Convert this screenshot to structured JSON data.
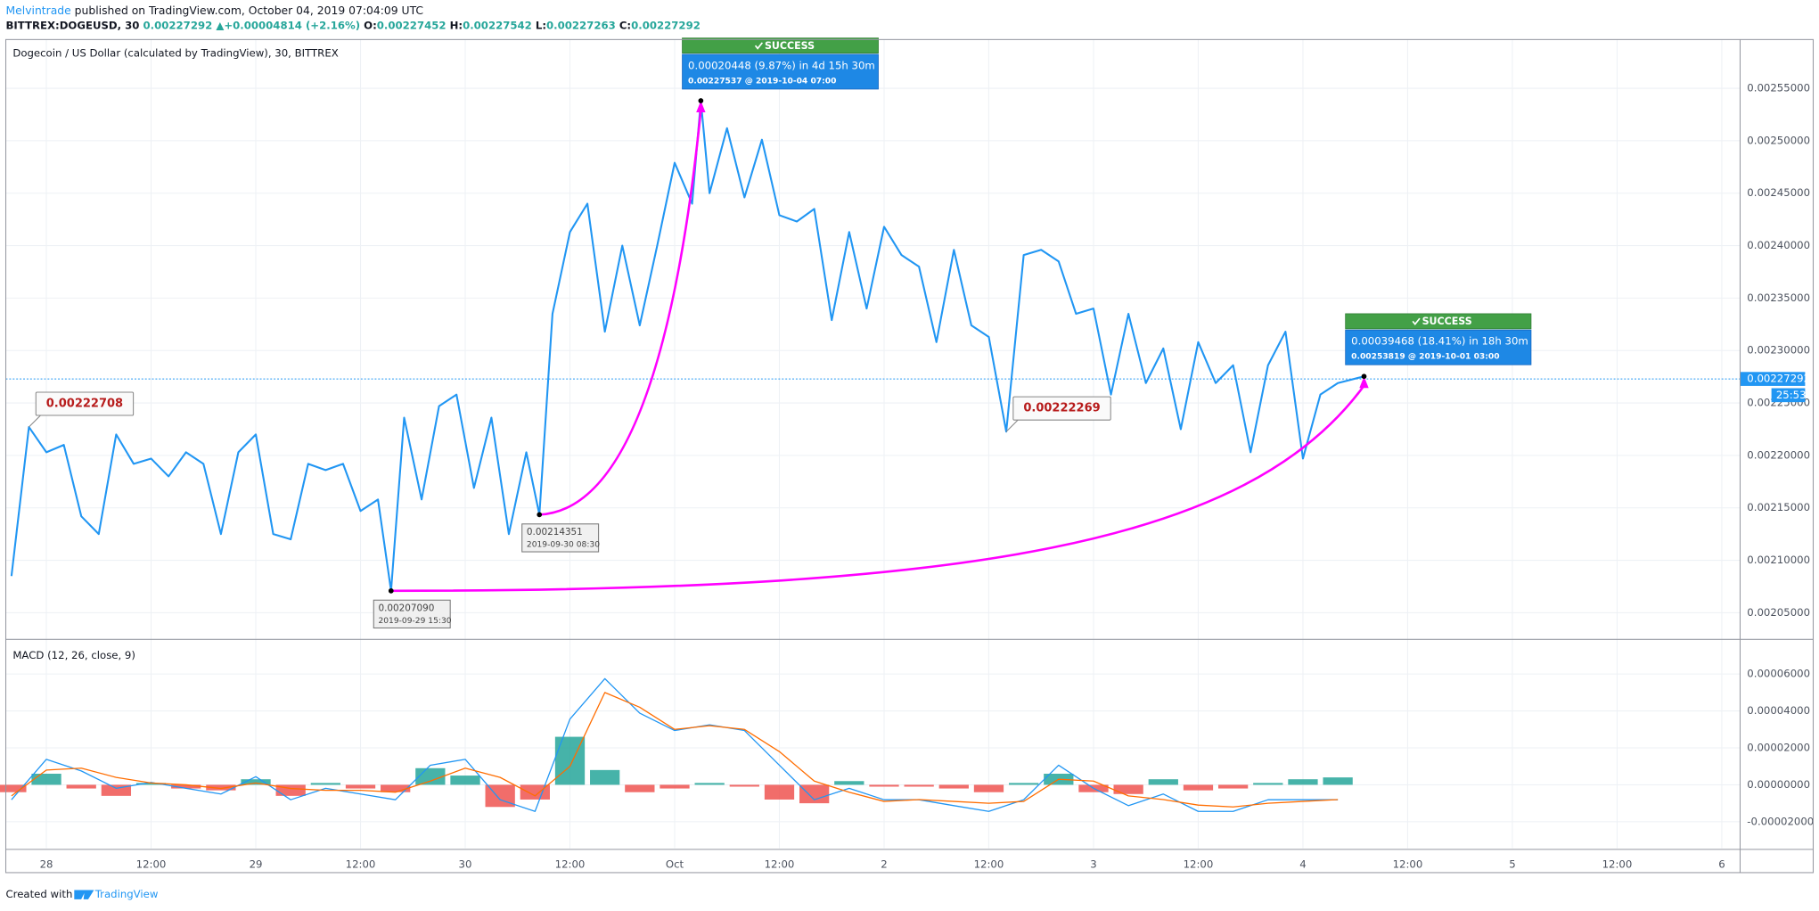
{
  "header": {
    "author": "Melvintrade",
    "published": "published on TradingView.com, October 04, 2019 07:04:09 UTC",
    "symbol": "BITTREX:DOGEUSD, 30",
    "price": "0.00227292",
    "arrow": "▲",
    "change": "+0.00004814 (+2.16%)",
    "o_label": "O:",
    "o": "0.00227452",
    "h_label": "H:",
    "h": "0.00227542",
    "l_label": "L:",
    "l": "0.00227263",
    "c_label": "C:",
    "c": "0.00227292"
  },
  "footer": {
    "created": "Created with",
    "brand": "TradingView"
  },
  "chart_data": [
    {
      "type": "line",
      "title": "Dogecoin / US Dollar (calculated by TradingView), 30, BITTREX",
      "x": [
        -4,
        -2,
        0,
        2,
        4,
        6,
        8,
        10,
        12,
        14,
        16,
        18,
        20,
        22,
        24,
        26,
        28,
        30,
        32,
        34,
        36,
        38,
        39.5,
        41,
        43,
        45,
        47,
        49,
        51,
        53,
        55,
        56.5,
        58,
        60,
        62,
        64,
        66,
        68,
        70,
        72,
        74,
        75,
        76,
        78,
        80,
        82,
        84,
        86,
        88,
        90,
        92,
        94,
        96,
        98,
        100,
        102,
        104,
        106,
        108,
        110,
        112,
        114,
        116,
        118,
        120,
        122,
        124,
        126,
        128,
        130,
        132,
        134,
        136,
        138,
        140,
        142,
        144,
        146,
        148,
        151
      ],
      "series": [
        {
          "color": "#2196f3",
          "values": [
            0.002085,
            0.00222708,
            0.002203,
            0.00221,
            0.002142,
            0.002125,
            0.00222,
            0.002192,
            0.002197,
            0.00218,
            0.002203,
            0.002192,
            0.002125,
            0.002203,
            0.00222,
            0.002125,
            0.00212,
            0.002192,
            0.002186,
            0.002192,
            0.002147,
            0.002158,
            0.0020709,
            0.002236,
            0.002158,
            0.002247,
            0.002258,
            0.002169,
            0.002236,
            0.002125,
            0.002203,
            0.00214351,
            0.002335,
            0.002413,
            0.00244,
            0.002318,
            0.0024,
            0.002324,
            0.0024,
            0.002479,
            0.00244,
            0.00253819,
            0.00245,
            0.002512,
            0.002446,
            0.002501,
            0.002429,
            0.002423,
            0.002435,
            0.002329,
            0.002413,
            0.00234,
            0.002418,
            0.002391,
            0.00238,
            0.002308,
            0.002396,
            0.002324,
            0.002313,
            0.00222269,
            0.002391,
            0.002396,
            0.002385,
            0.002335,
            0.00234,
            0.002258,
            0.002335,
            0.002269,
            0.002302,
            0.002225,
            0.002308,
            0.002269,
            0.002286,
            0.002203,
            0.002286,
            0.002318,
            0.002197,
            0.002258,
            0.002269,
            0.00227537
          ]
        }
      ],
      "xlim": [
        -4.65,
        194.1
      ],
      "ylim": [
        0.0020257,
        0.0025965
      ],
      "yticks": [
        {
          "value": 0.00205,
          "label": "0.00205000"
        },
        {
          "value": 0.0021,
          "label": "0.00210000"
        },
        {
          "value": 0.00215,
          "label": "0.00215000"
        },
        {
          "value": 0.0022,
          "label": "0.00220000"
        },
        {
          "value": 0.00225,
          "label": "0.00225000"
        },
        {
          "value": 0.0023,
          "label": "0.00230000"
        },
        {
          "value": 0.00235,
          "label": "0.00235000"
        },
        {
          "value": 0.0024,
          "label": "0.00240000"
        },
        {
          "value": 0.00245,
          "label": "0.00245000"
        },
        {
          "value": 0.0025,
          "label": "0.00250000"
        },
        {
          "value": 0.00255,
          "label": "0.00255000"
        }
      ],
      "grid": true,
      "last": 0.00227292,
      "last_color": "#2196f3",
      "countdown": "25:53",
      "arrow_color": "#ff00ff",
      "price_labels": [
        "0.00222708",
        "0.00222269"
      ],
      "lows": [
        {
          "value": "0.00207090",
          "date": "2019-09-29 15:30"
        },
        {
          "value": "0.00214351",
          "date": "2019-09-30 08:30"
        }
      ],
      "targets": [
        {
          "status": "SUCCESS",
          "change": "0.00039468 (18.41%) in 18h 30m",
          "detail": "0.00253819 @ 2019-10-01  03:00"
        },
        {
          "status": "SUCCESS",
          "change": "0.00020448 (9.87%) in 4d 15h 30m",
          "detail": "0.00227537 @ 2019-10-04  07:00"
        }
      ]
    },
    {
      "type": "macd",
      "title": "MACD (12, 26, close, 9)",
      "x": [
        -4,
        0,
        4,
        8,
        12,
        16,
        20,
        24,
        28,
        32,
        36,
        40,
        44,
        48,
        52,
        56,
        60,
        64,
        68,
        72,
        76,
        80,
        84,
        88,
        92,
        96,
        100,
        104,
        108,
        112,
        116,
        120,
        124,
        128,
        132,
        136,
        140,
        144,
        148
      ],
      "series": [
        {
          "color": "#2196f3",
          "values": [
            -8.1e-06,
            1.38e-05,
            7.5e-06,
            -1.9e-06,
            1.3e-06,
            -1.9e-06,
            -5e-06,
            4.4e-06,
            -8.1e-06,
            -1.9e-06,
            -5e-06,
            -8.1e-06,
            1.06e-05,
            1.38e-05,
            -8.1e-06,
            -1.44e-05,
            3.56e-05,
            5.75e-05,
            3.88e-05,
            2.94e-05,
            3.25e-05,
            2.94e-05,
            1.06e-05,
            -8.1e-06,
            -1.9e-06,
            -8.1e-06,
            -8.1e-06,
            -1.13e-05,
            -1.44e-05,
            -8.1e-06,
            1.06e-05,
            -1.9e-06,
            -1.13e-05,
            -5e-06,
            -1.44e-05,
            -1.44e-05,
            -8.1e-06,
            -8.1e-06,
            -8.1e-06
          ]
        },
        {
          "color": "#ff6d00",
          "values": [
            -6e-06,
            8e-06,
            9e-06,
            4e-06,
            1e-06,
            0,
            -2e-06,
            1e-06,
            -2e-06,
            -3e-06,
            -3e-06,
            -4e-06,
            2e-06,
            9e-06,
            4e-06,
            -6e-06,
            1e-05,
            5e-05,
            4.2e-05,
            3e-05,
            3.2e-05,
            3e-05,
            1.8e-05,
            2e-06,
            -4e-06,
            -9e-06,
            -8e-06,
            -9e-06,
            -1e-05,
            -9e-06,
            3e-06,
            2e-06,
            -6e-06,
            -8e-06,
            -1.1e-05,
            -1.2e-05,
            -1e-05,
            -9e-06,
            -8e-06
          ]
        },
        {
          "up_color": "#26a69a",
          "down_color": "#ef5350",
          "values": [
            -4e-06,
            6e-06,
            -2e-06,
            -6e-06,
            1e-06,
            -2e-06,
            -3e-06,
            3e-06,
            -6e-06,
            1e-06,
            -2e-06,
            -4e-06,
            9e-06,
            5e-06,
            -1.2e-05,
            -8e-06,
            2.6e-05,
            8e-06,
            -4e-06,
            -2e-06,
            1e-06,
            -1e-06,
            -8e-06,
            -1e-05,
            2e-06,
            -1e-06,
            -1e-06,
            -2e-06,
            -4e-06,
            1e-06,
            6e-06,
            -4e-06,
            -5e-06,
            3e-06,
            -3e-06,
            -2e-06,
            1e-06,
            3e-06,
            4e-06
          ]
        }
      ],
      "xlim": [
        -4.65,
        194.1
      ],
      "ylim": [
        -3.4375e-05,
        7.8125e-05
      ],
      "yticks": [
        {
          "value": -2e-05,
          "label": "-0.00002000"
        },
        {
          "value": 0,
          "label": "0.00000000"
        },
        {
          "value": 2e-05,
          "label": "0.00002000"
        },
        {
          "value": 4e-05,
          "label": "0.00004000"
        },
        {
          "value": 6e-05,
          "label": "0.00006000"
        }
      ],
      "grid": true,
      "xticks": [
        {
          "value": 0,
          "label": "28"
        },
        {
          "value": 12,
          "label": "12:00"
        },
        {
          "value": 24,
          "label": "29"
        },
        {
          "value": 36,
          "label": "12:00"
        },
        {
          "value": 48,
          "label": "30"
        },
        {
          "value": 60,
          "label": "12:00"
        },
        {
          "value": 72,
          "label": "Oct"
        },
        {
          "value": 84,
          "label": "12:00"
        },
        {
          "value": 96,
          "label": "2"
        },
        {
          "value": 108,
          "label": "12:00"
        },
        {
          "value": 120,
          "label": "3"
        },
        {
          "value": 132,
          "label": "12:00"
        },
        {
          "value": 144,
          "label": "4"
        },
        {
          "value": 156,
          "label": "12:00"
        },
        {
          "value": 168,
          "label": "5"
        },
        {
          "value": 180,
          "label": "12:00"
        },
        {
          "value": 192,
          "label": "6"
        }
      ]
    }
  ]
}
